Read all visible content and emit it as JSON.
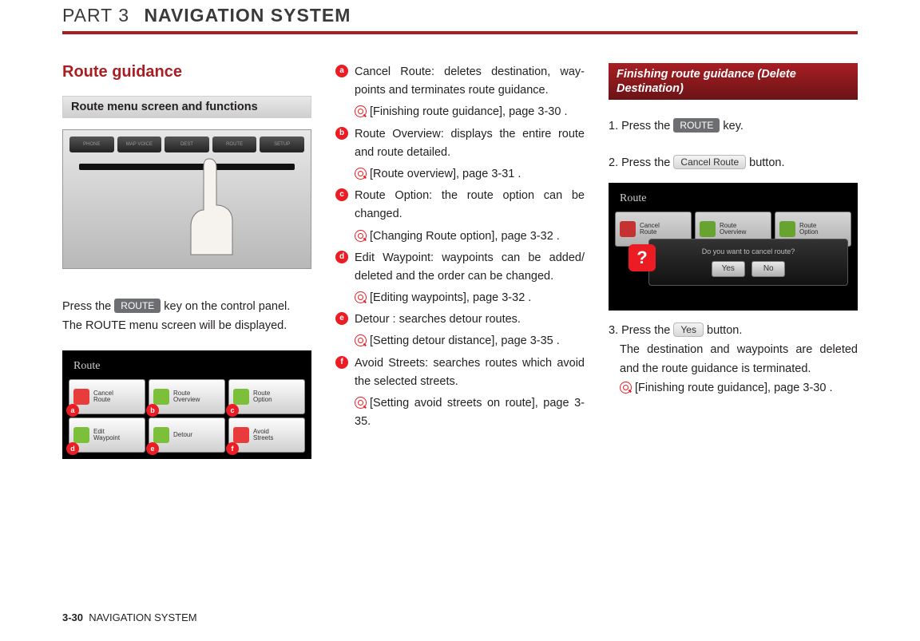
{
  "header": {
    "part_label": "PART 3",
    "part_title": "NAVIGATION SYSTEM"
  },
  "footer": {
    "page": "3-30",
    "section": "NAVIGATION SYSTEM"
  },
  "col1": {
    "title": "Route guidance",
    "subtitle_bar": "Route menu screen and functions",
    "device_buttons": [
      "PHONE",
      "MAP VOICE",
      "DEST",
      "ROUTE",
      "SETUP"
    ],
    "press_line_pre": "Press the ",
    "route_key": "ROUTE",
    "press_line_post": " key on the control panel.",
    "second_line": "The ROUTE menu screen will be displayed.",
    "screenshot": {
      "title": "Route",
      "tiles": [
        {
          "marker": "a",
          "label": "Cancel\nRoute",
          "color": "#e83b3b"
        },
        {
          "marker": "b",
          "label": "Route\nOverview",
          "color": "#7bbf3a"
        },
        {
          "marker": "c",
          "label": "Route\nOption",
          "color": "#7bbf3a"
        },
        {
          "marker": "d",
          "label": "Edit\nWaypoint",
          "color": "#7bbf3a"
        },
        {
          "marker": "e",
          "label": "Detour",
          "color": "#7bbf3a"
        },
        {
          "marker": "f",
          "label": "Avoid\nStreets",
          "color": "#e83b3b"
        }
      ]
    }
  },
  "col2": {
    "items": [
      {
        "marker": "a",
        "text": "Cancel Route: deletes destination, way-points and terminates route guidance.",
        "ref": "[Finishing route guidance], page 3-30 ."
      },
      {
        "marker": "b",
        "text": "Route Overview: displays the entire route and route detailed.",
        "ref": "[Route overview], page 3-31 ."
      },
      {
        "marker": "c",
        "text": "Route Option: the route option can be changed.",
        "ref": "[Changing Route option], page 3-32 ."
      },
      {
        "marker": "d",
        "text": "Edit Waypoint: waypoints can be added/ deleted and the order can be changed.",
        "ref": "[Editing waypoints], page 3-32 ."
      },
      {
        "marker": "e",
        "text": "Detour : searches detour routes.",
        "ref": "[Setting detour distance], page 3-35 ."
      },
      {
        "marker": "f",
        "text": "Avoid Streets: searches routes which avoid the selected streets.",
        "ref": "[Setting avoid streets on route], page 3-35."
      }
    ]
  },
  "col3": {
    "heading_bar": "Finishing route guidance (Delete Destination)",
    "step1_pre": "1. Press the ",
    "step1_key": "ROUTE",
    "step1_post": " key.",
    "step2_pre": "2. Press the ",
    "step2_btn": "Cancel Route",
    "step2_post": " button.",
    "screenshot": {
      "title": "Route",
      "tiles": [
        {
          "label": "Cancel\nRoute",
          "color": "#e83b3b"
        },
        {
          "label": "Route\nOverview",
          "color": "#7bbf3a"
        },
        {
          "label": "Route\nOption",
          "color": "#7bbf3a"
        }
      ],
      "dialog_text": "Do you want to cancel route?",
      "dialog_yes": "Yes",
      "dialog_no": "No",
      "q": "?"
    },
    "step3_pre": "3. Press the ",
    "step3_btn": "Yes",
    "step3_post": " button.",
    "step3_line2": "The destination and waypoints are deleted and the route guidance is terminated.",
    "step3_ref": "[Finishing route guidance], page 3-30 ."
  }
}
